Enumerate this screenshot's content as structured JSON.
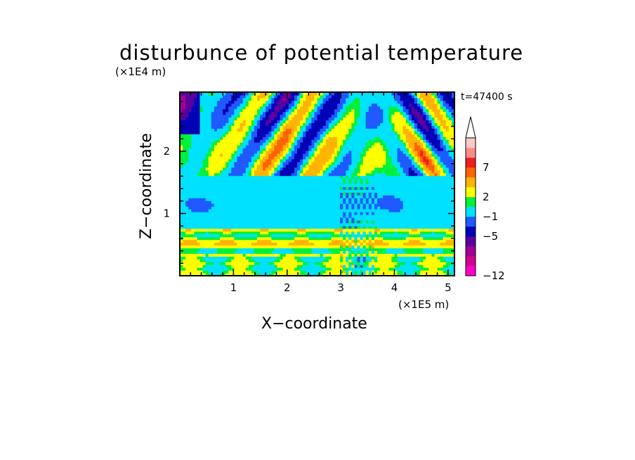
{
  "chart_data": {
    "type": "heatmap",
    "title": "disturbunce of potential temperature",
    "xlabel": "X−coordinate",
    "ylabel": "Z−coordinate",
    "x_scale_label": "(×1E5 m)",
    "y_scale_label": "(×1E4 m)",
    "time_label": "t=47400 s",
    "xlim": [
      0,
      5.12
    ],
    "ylim": [
      0,
      2.95
    ],
    "x_ticks": [
      1,
      2,
      3,
      4,
      5
    ],
    "x_tick_labels": [
      "1",
      "2",
      "3",
      "4",
      "5"
    ],
    "y_ticks": [
      1,
      2
    ],
    "y_tick_labels": [
      "1",
      "2"
    ],
    "colorbar": {
      "levels_bottom_to_top": [
        -12,
        -10,
        -8,
        -6,
        -5,
        -3,
        -1,
        1,
        2,
        4,
        6,
        7,
        9,
        11
      ],
      "colors_bottom_to_top": [
        "#ff00c8",
        "#d2008c",
        "#a00096",
        "#5a00a0",
        "#0000b4",
        "#1e5aff",
        "#00e1ff",
        "#00f03c",
        "#ffff00",
        "#ffb400",
        "#ff6400",
        "#f01e1e",
        "#ff8c8c",
        "#ffc8c8"
      ],
      "extend_top": true,
      "labeled_values": [
        "−12",
        "−5",
        "−1",
        "2",
        "7"
      ]
    },
    "field_description_layers": [
      {
        "z_range": [
          0.0,
          0.3
        ],
        "dominant": "yellow/orange with green"
      },
      {
        "z_range": [
          0.3,
          0.7
        ],
        "dominant": "yellow/orange bands"
      },
      {
        "z_range": [
          0.7,
          1.6
        ],
        "dominant": "green with cyan patches"
      },
      {
        "z_range": [
          1.6,
          2.95
        ],
        "dominant": "wave pattern red/orange/blue"
      }
    ]
  }
}
